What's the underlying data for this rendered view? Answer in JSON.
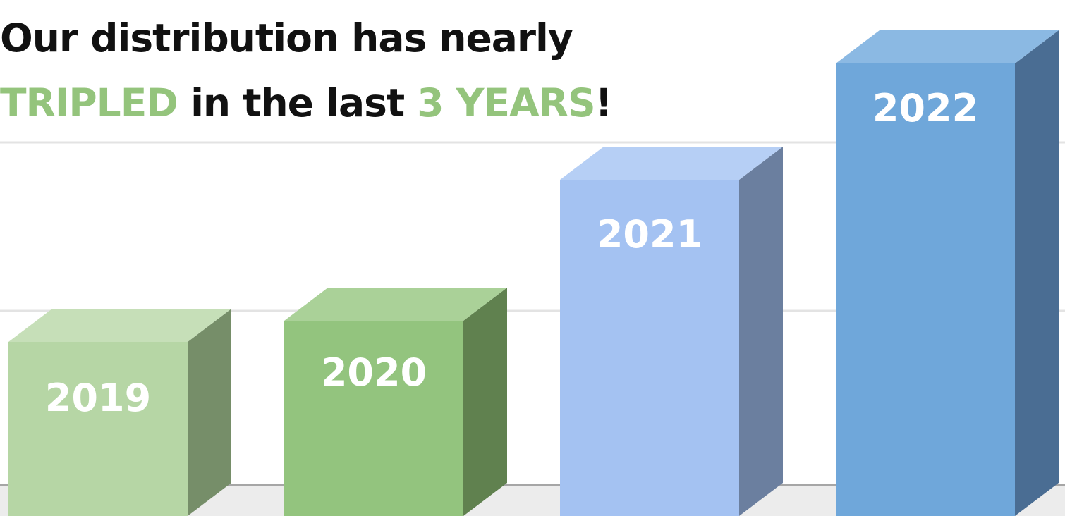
{
  "title": {
    "line1": "Our distribution has nearly",
    "highlight1": "TRIPLED",
    "middle": " in the last ",
    "highlight2": "3 YEARS",
    "end": "!"
  },
  "colors": {
    "highlight": "#94c47c",
    "gridline": "#e3e3e3",
    "floor": "#ececec"
  },
  "chart_data": {
    "type": "bar",
    "style": "3d-column",
    "categories": [
      "2019",
      "2020",
      "2021",
      "2022"
    ],
    "values": [
      1.0,
      1.12,
      1.93,
      2.6
    ],
    "data_labels": [
      "2019",
      "2020",
      "2021",
      "2022"
    ],
    "ylim": [
      0,
      2.8
    ],
    "grid": true,
    "legend": "none",
    "xlabel": "",
    "ylabel": "",
    "series_colors": [
      {
        "front": "#b6d6a5",
        "side": "#768e69",
        "top": "#c6dfb8"
      },
      {
        "front": "#93c47e",
        "side": "#60814f",
        "top": "#aad198"
      },
      {
        "front": "#a4c2f2",
        "side": "#6b7f9f",
        "top": "#b6cff5"
      },
      {
        "front": "#6fa7da",
        "side": "#4a6d93",
        "top": "#8bb9e3"
      }
    ]
  }
}
